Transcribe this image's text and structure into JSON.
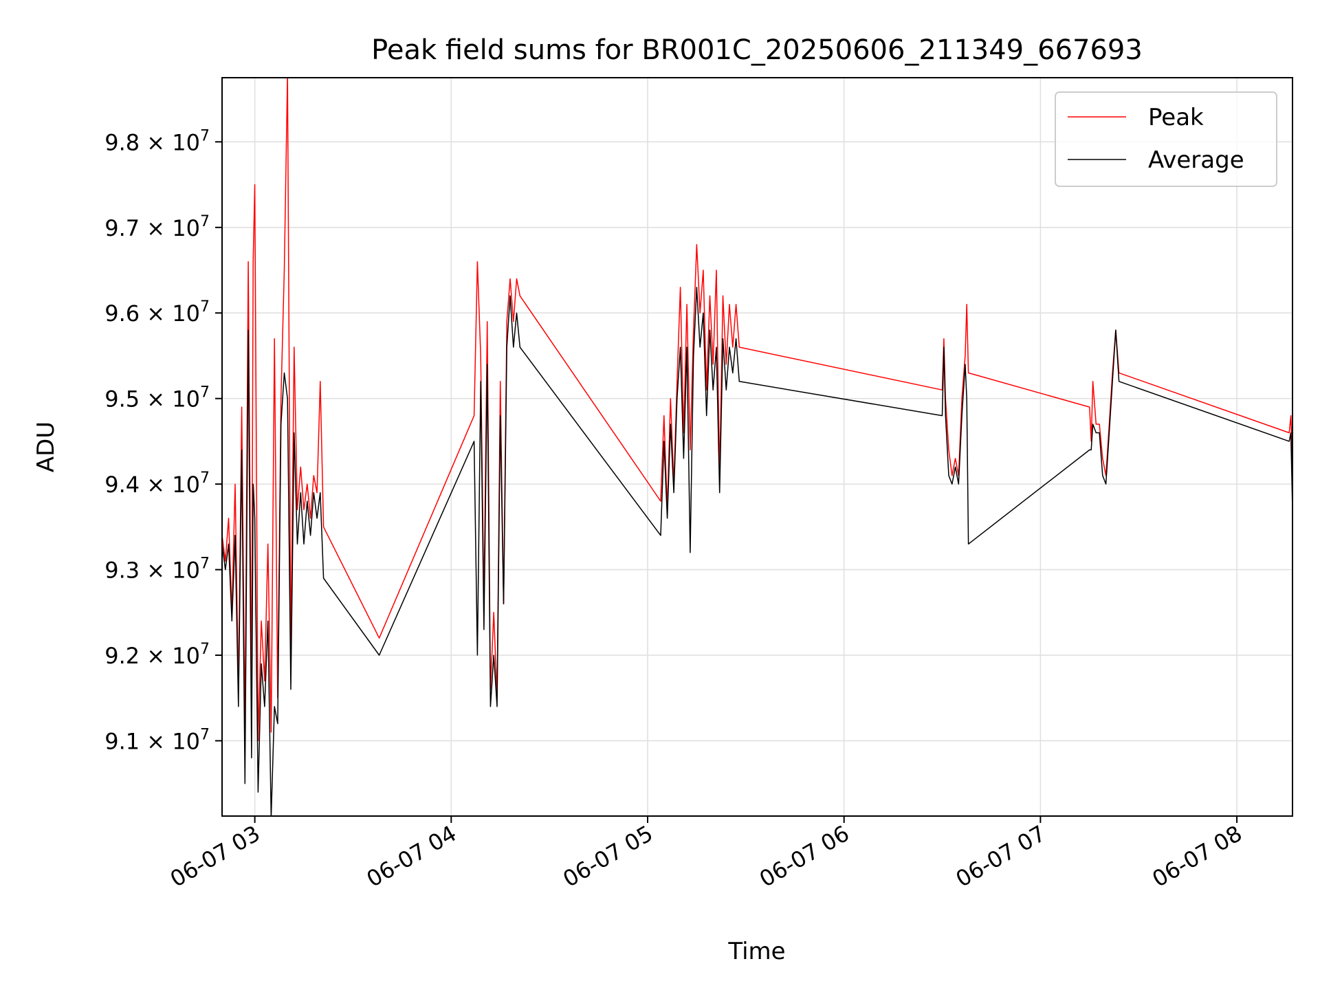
{
  "chart_data": {
    "type": "line",
    "title": "Peak field sums for BR001C_20250606_211349_667693",
    "xlabel": "Time",
    "ylabel": "ADU",
    "xlim": [
      "06-07 02:50",
      "06-07 08:17"
    ],
    "ylim": [
      90.12,
      98.75
    ],
    "y_unit_multiplier": "10^6",
    "x_ticks": [
      {
        "t": "06-07 03:00",
        "label": "06-07 03"
      },
      {
        "t": "06-07 04:00",
        "label": "06-07 04"
      },
      {
        "t": "06-07 05:00",
        "label": "06-07 05"
      },
      {
        "t": "06-07 06:00",
        "label": "06-07 06"
      },
      {
        "t": "06-07 07:00",
        "label": "06-07 07"
      },
      {
        "t": "06-07 08:00",
        "label": "06-07 08"
      }
    ],
    "y_ticks": [
      {
        "v": 91,
        "mantissa": "9.1",
        "exp": "7"
      },
      {
        "v": 92,
        "mantissa": "9.2",
        "exp": "7"
      },
      {
        "v": 93,
        "mantissa": "9.3",
        "exp": "7"
      },
      {
        "v": 94,
        "mantissa": "9.4",
        "exp": "7"
      },
      {
        "v": 95,
        "mantissa": "9.5",
        "exp": "7"
      },
      {
        "v": 96,
        "mantissa": "9.6",
        "exp": "7"
      },
      {
        "v": 97,
        "mantissa": "9.7",
        "exp": "7"
      },
      {
        "v": 98,
        "mantissa": "9.8",
        "exp": "7"
      }
    ],
    "grid": true,
    "legend_position": "top-right",
    "series": [
      {
        "name": "Peak",
        "color": "#ff0000",
        "points": [
          [
            "06-07 02:50",
            93.4
          ],
          [
            "06-07 02:51",
            93.1
          ],
          [
            "06-07 02:52",
            93.6
          ],
          [
            "06-07 02:53",
            92.5
          ],
          [
            "06-07 02:54",
            94.0
          ],
          [
            "06-07 02:55",
            91.6
          ],
          [
            "06-07 02:56",
            94.9
          ],
          [
            "06-07 02:57",
            91.1
          ],
          [
            "06-07 02:58",
            96.6
          ],
          [
            "06-07 02:59",
            91.4
          ],
          [
            "06-07 02:59:30",
            96.6
          ],
          [
            "06-07 03:00",
            97.5
          ],
          [
            "06-07 03:01",
            91.0
          ],
          [
            "06-07 03:02",
            92.4
          ],
          [
            "06-07 03:03",
            91.7
          ],
          [
            "06-07 03:04",
            93.3
          ],
          [
            "06-07 03:05",
            91.1
          ],
          [
            "06-07 03:06",
            95.7
          ],
          [
            "06-07 03:07",
            91.5
          ],
          [
            "06-07 03:08",
            95.0
          ],
          [
            "06-07 03:09",
            96.5
          ],
          [
            "06-07 03:10",
            98.8
          ],
          [
            "06-07 03:11",
            92.0
          ],
          [
            "06-07 03:12",
            95.6
          ],
          [
            "06-07 03:13",
            93.7
          ],
          [
            "06-07 03:14",
            94.2
          ],
          [
            "06-07 03:15",
            93.7
          ],
          [
            "06-07 03:16",
            94.0
          ],
          [
            "06-07 03:17",
            93.6
          ],
          [
            "06-07 03:18",
            94.1
          ],
          [
            "06-07 03:19",
            93.9
          ],
          [
            "06-07 03:20",
            95.2
          ],
          [
            "06-07 03:21",
            93.5
          ],
          [
            "06-07 03:38",
            92.2
          ],
          [
            "06-07 04:07",
            94.8
          ],
          [
            "06-07 04:08",
            96.6
          ],
          [
            "06-07 04:09",
            95.5
          ],
          [
            "06-07 04:10",
            92.6
          ],
          [
            "06-07 04:11",
            95.9
          ],
          [
            "06-07 04:12",
            91.6
          ],
          [
            "06-07 04:13",
            92.5
          ],
          [
            "06-07 04:14",
            91.5
          ],
          [
            "06-07 04:15",
            95.2
          ],
          [
            "06-07 04:16",
            92.6
          ],
          [
            "06-07 04:17",
            95.9
          ],
          [
            "06-07 04:18",
            96.4
          ],
          [
            "06-07 04:19",
            95.9
          ],
          [
            "06-07 04:20",
            96.4
          ],
          [
            "06-07 04:21",
            96.2
          ],
          [
            "06-07 05:04",
            93.8
          ],
          [
            "06-07 05:05",
            94.8
          ],
          [
            "06-07 05:06",
            93.7
          ],
          [
            "06-07 05:07",
            95.0
          ],
          [
            "06-07 05:08",
            94.0
          ],
          [
            "06-07 05:09",
            95.2
          ],
          [
            "06-07 05:10",
            96.3
          ],
          [
            "06-07 05:11",
            94.6
          ],
          [
            "06-07 05:12",
            96.1
          ],
          [
            "06-07 05:13",
            94.4
          ],
          [
            "06-07 05:14",
            95.8
          ],
          [
            "06-07 05:15",
            96.8
          ],
          [
            "06-07 05:16",
            96.0
          ],
          [
            "06-07 05:17",
            96.5
          ],
          [
            "06-07 05:18",
            95.1
          ],
          [
            "06-07 05:19",
            96.2
          ],
          [
            "06-07 05:20",
            95.4
          ],
          [
            "06-07 05:21",
            96.5
          ],
          [
            "06-07 05:22",
            94.1
          ],
          [
            "06-07 05:23",
            96.2
          ],
          [
            "06-07 05:24",
            95.4
          ],
          [
            "06-07 05:25",
            96.1
          ],
          [
            "06-07 05:26",
            95.6
          ],
          [
            "06-07 05:27",
            96.1
          ],
          [
            "06-07 05:28",
            95.6
          ],
          [
            "06-07 06:30",
            95.1
          ],
          [
            "06-07 06:30:30",
            95.7
          ],
          [
            "06-07 06:31",
            95.0
          ],
          [
            "06-07 06:32",
            94.4
          ],
          [
            "06-07 06:33",
            94.1
          ],
          [
            "06-07 06:34",
            94.3
          ],
          [
            "06-07 06:35",
            94.1
          ],
          [
            "06-07 06:36",
            95.0
          ],
          [
            "06-07 06:37",
            95.5
          ],
          [
            "06-07 06:37:30",
            96.1
          ],
          [
            "06-07 06:38",
            95.3
          ],
          [
            "06-07 07:15",
            94.9
          ],
          [
            "06-07 07:15:30",
            94.5
          ],
          [
            "06-07 07:16",
            95.2
          ],
          [
            "06-07 07:17",
            94.7
          ],
          [
            "06-07 07:18",
            94.7
          ],
          [
            "06-07 07:19",
            94.3
          ],
          [
            "06-07 07:20",
            94.1
          ],
          [
            "06-07 07:21",
            94.7
          ],
          [
            "06-07 07:22",
            95.3
          ],
          [
            "06-07 07:23",
            95.8
          ],
          [
            "06-07 07:24",
            95.3
          ],
          [
            "06-07 08:16",
            94.6
          ],
          [
            "06-07 08:16:30",
            94.8
          ],
          [
            "06-07 08:17",
            94.2
          ]
        ]
      },
      {
        "name": "Average",
        "color": "#000000",
        "points": [
          [
            "06-07 02:50",
            93.3
          ],
          [
            "06-07 02:51",
            93.0
          ],
          [
            "06-07 02:52",
            93.3
          ],
          [
            "06-07 02:53",
            92.4
          ],
          [
            "06-07 02:54",
            93.4
          ],
          [
            "06-07 02:55",
            91.4
          ],
          [
            "06-07 02:56",
            94.4
          ],
          [
            "06-07 02:57",
            90.5
          ],
          [
            "06-07 02:58",
            95.8
          ],
          [
            "06-07 02:59",
            90.8
          ],
          [
            "06-07 02:59:30",
            94.0
          ],
          [
            "06-07 03:00",
            93.6
          ],
          [
            "06-07 03:01",
            90.4
          ],
          [
            "06-07 03:02",
            91.9
          ],
          [
            "06-07 03:03",
            91.4
          ],
          [
            "06-07 03:04",
            92.4
          ],
          [
            "06-07 03:05",
            90.1
          ],
          [
            "06-07 03:06",
            91.4
          ],
          [
            "06-07 03:07",
            91.2
          ],
          [
            "06-07 03:08",
            94.7
          ],
          [
            "06-07 03:09",
            95.3
          ],
          [
            "06-07 03:10",
            95.0
          ],
          [
            "06-07 03:11",
            91.6
          ],
          [
            "06-07 03:12",
            94.6
          ],
          [
            "06-07 03:13",
            93.3
          ],
          [
            "06-07 03:14",
            93.9
          ],
          [
            "06-07 03:15",
            93.3
          ],
          [
            "06-07 03:16",
            93.8
          ],
          [
            "06-07 03:17",
            93.4
          ],
          [
            "06-07 03:18",
            93.9
          ],
          [
            "06-07 03:19",
            93.6
          ],
          [
            "06-07 03:20",
            93.9
          ],
          [
            "06-07 03:21",
            92.9
          ],
          [
            "06-07 03:38",
            92.0
          ],
          [
            "06-07 04:07",
            94.5
          ],
          [
            "06-07 04:08",
            92.0
          ],
          [
            "06-07 04:09",
            95.2
          ],
          [
            "06-07 04:10",
            92.3
          ],
          [
            "06-07 04:11",
            95.4
          ],
          [
            "06-07 04:12",
            91.4
          ],
          [
            "06-07 04:13",
            92.0
          ],
          [
            "06-07 04:14",
            91.4
          ],
          [
            "06-07 04:15",
            94.8
          ],
          [
            "06-07 04:16",
            92.6
          ],
          [
            "06-07 04:17",
            95.6
          ],
          [
            "06-07 04:18",
            96.2
          ],
          [
            "06-07 04:19",
            95.6
          ],
          [
            "06-07 04:20",
            96.0
          ],
          [
            "06-07 04:21",
            95.6
          ],
          [
            "06-07 05:04",
            93.4
          ],
          [
            "06-07 05:05",
            94.5
          ],
          [
            "06-07 05:06",
            93.6
          ],
          [
            "06-07 05:07",
            94.7
          ],
          [
            "06-07 05:08",
            93.9
          ],
          [
            "06-07 05:09",
            95.0
          ],
          [
            "06-07 05:10",
            95.6
          ],
          [
            "06-07 05:11",
            94.3
          ],
          [
            "06-07 05:12",
            95.6
          ],
          [
            "06-07 05:13",
            93.2
          ],
          [
            "06-07 05:14",
            95.5
          ],
          [
            "06-07 05:15",
            96.3
          ],
          [
            "06-07 05:16",
            95.6
          ],
          [
            "06-07 05:17",
            96.0
          ],
          [
            "06-07 05:18",
            94.8
          ],
          [
            "06-07 05:19",
            95.8
          ],
          [
            "06-07 05:20",
            95.1
          ],
          [
            "06-07 05:21",
            95.6
          ],
          [
            "06-07 05:22",
            93.9
          ],
          [
            "06-07 05:23",
            95.7
          ],
          [
            "06-07 05:24",
            95.1
          ],
          [
            "06-07 05:25",
            95.6
          ],
          [
            "06-07 05:26",
            95.3
          ],
          [
            "06-07 05:27",
            95.7
          ],
          [
            "06-07 05:28",
            95.2
          ],
          [
            "06-07 06:30",
            94.8
          ],
          [
            "06-07 06:30:30",
            95.6
          ],
          [
            "06-07 06:31",
            94.8
          ],
          [
            "06-07 06:32",
            94.1
          ],
          [
            "06-07 06:33",
            94.0
          ],
          [
            "06-07 06:34",
            94.2
          ],
          [
            "06-07 06:35",
            94.0
          ],
          [
            "06-07 06:36",
            94.8
          ],
          [
            "06-07 06:37",
            95.4
          ],
          [
            "06-07 06:37:30",
            95.0
          ],
          [
            "06-07 06:38",
            93.3
          ],
          [
            "06-07 07:15",
            94.4
          ],
          [
            "06-07 07:15:30",
            94.4
          ],
          [
            "06-07 07:16",
            94.7
          ],
          [
            "06-07 07:17",
            94.6
          ],
          [
            "06-07 07:18",
            94.6
          ],
          [
            "06-07 07:19",
            94.1
          ],
          [
            "06-07 07:20",
            94.0
          ],
          [
            "06-07 07:21",
            94.6
          ],
          [
            "06-07 07:22",
            95.2
          ],
          [
            "06-07 07:23",
            95.8
          ],
          [
            "06-07 07:24",
            95.2
          ],
          [
            "06-07 08:16",
            94.5
          ],
          [
            "06-07 08:16:30",
            94.6
          ],
          [
            "06-07 08:17",
            93.7
          ]
        ]
      }
    ]
  }
}
